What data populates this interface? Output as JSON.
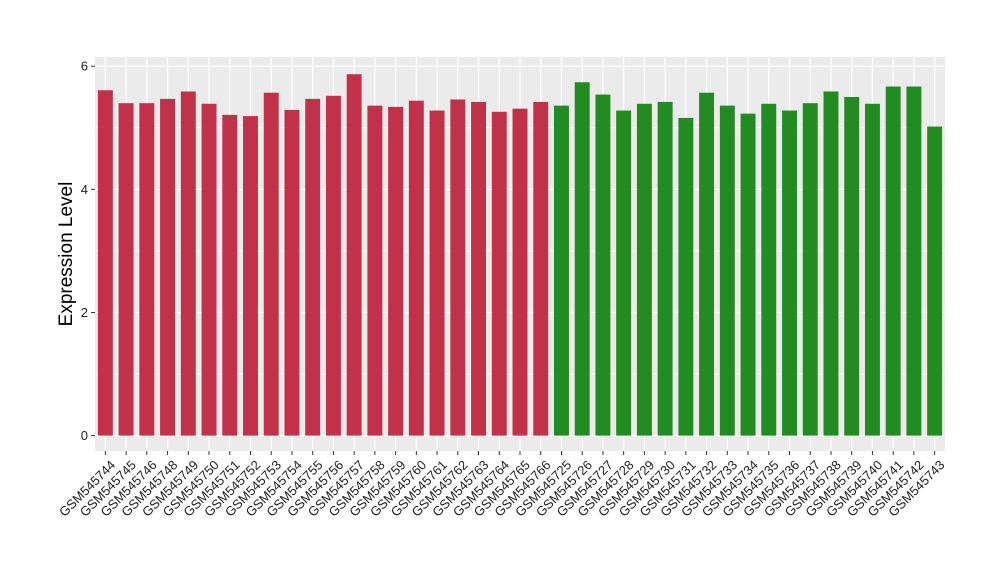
{
  "chart_data": {
    "type": "bar",
    "title": "",
    "xlabel": "",
    "ylabel": "Expression Level",
    "ylim": [
      -0.25,
      6.15
    ],
    "yticks": [
      0,
      2,
      4,
      6
    ],
    "grid": true,
    "legend": "none",
    "colors": {
      "group1": "#C1324A",
      "group2": "#228B22",
      "panel": "#EBEBEB",
      "grid": "#FFFFFF"
    },
    "categories": [
      "GSM545744",
      "GSM545745",
      "GSM545746",
      "GSM545748",
      "GSM545749",
      "GSM545750",
      "GSM545751",
      "GSM545752",
      "GSM545753",
      "GSM545754",
      "GSM545755",
      "GSM545756",
      "GSM545757",
      "GSM545758",
      "GSM545759",
      "GSM545760",
      "GSM545761",
      "GSM545762",
      "GSM545763",
      "GSM545764",
      "GSM545765",
      "GSM545766",
      "GSM545725",
      "GSM545726",
      "GSM545727",
      "GSM545728",
      "GSM545729",
      "GSM545730",
      "GSM545731",
      "GSM545732",
      "GSM545733",
      "GSM545734",
      "GSM545735",
      "GSM545736",
      "GSM545737",
      "GSM545738",
      "GSM545739",
      "GSM545740",
      "GSM545741",
      "GSM545742",
      "GSM545743"
    ],
    "values": [
      5.61,
      5.4,
      5.4,
      5.47,
      5.59,
      5.39,
      5.21,
      5.19,
      5.57,
      5.29,
      5.47,
      5.52,
      5.87,
      5.36,
      5.34,
      5.44,
      5.28,
      5.46,
      5.42,
      5.26,
      5.31,
      5.42,
      5.36,
      5.74,
      5.54,
      5.28,
      5.39,
      5.42,
      5.16,
      5.57,
      5.36,
      5.23,
      5.39,
      5.28,
      5.4,
      5.59,
      5.5,
      5.39,
      5.67,
      5.67,
      5.02
    ],
    "groups": [
      1,
      1,
      1,
      1,
      1,
      1,
      1,
      1,
      1,
      1,
      1,
      1,
      1,
      1,
      1,
      1,
      1,
      1,
      1,
      1,
      1,
      1,
      2,
      2,
      2,
      2,
      2,
      2,
      2,
      2,
      2,
      2,
      2,
      2,
      2,
      2,
      2,
      2,
      2,
      2,
      2
    ]
  }
}
